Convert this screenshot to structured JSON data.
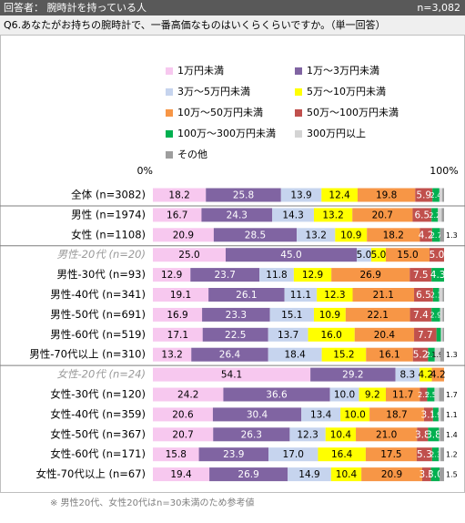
{
  "chart_data": {
    "type": "stacked_bar_100",
    "respondent": "回答者： 腕時計を持っている人",
    "sample_size": "n=3,082",
    "title": "Q6.あなたがお持ちの腕時計で、一番高価なものはいくらくらいですか。（単一回答）",
    "note": "※ 男性20代、女性20代はn=30未満のため参考値",
    "xlim": [
      0,
      100
    ],
    "xticks": [
      {
        "value": 0,
        "label": "0%"
      },
      {
        "value": 100,
        "label": "100%"
      }
    ],
    "categories": [
      "全体 (n=3082)",
      "男性 (n=1974)",
      "女性 (n=1108)",
      "男性-20代 (n=20)",
      "男性-30代 (n=93)",
      "男性-40代 (n=341)",
      "男性-50代 (n=691)",
      "男性-60代 (n=519)",
      "男性-70代以上 (n=310)",
      "女性-20代 (n=24)",
      "女性-30代 (n=120)",
      "女性-40代 (n=359)",
      "女性-50代 (n=367)",
      "女性-60代 (n=171)",
      "女性-70代以上 (n=67)"
    ],
    "series": [
      {
        "name": "1万円未満",
        "color": "#f7c8ef",
        "values": [
          18.2,
          16.7,
          20.9,
          25.0,
          12.9,
          19.1,
          16.9,
          17.1,
          13.2,
          54.1,
          24.2,
          20.6,
          20.7,
          15.8,
          19.4
        ],
        "value_labels": [
          "18.2",
          "16.7",
          "20.9",
          "25.0",
          "12.9",
          "19.1",
          "16.9",
          "17.1",
          "13.2",
          "54.1",
          "24.2",
          "20.6",
          "20.7",
          "15.8",
          "19.4"
        ]
      },
      {
        "name": "1万～3万円未満",
        "color": "#8064a2",
        "values": [
          25.8,
          24.3,
          28.5,
          45.0,
          23.7,
          26.1,
          23.3,
          22.5,
          26.4,
          29.2,
          36.6,
          30.4,
          26.3,
          23.9,
          26.9
        ],
        "value_labels": [
          "25.8",
          "24.3",
          "28.5",
          "45.0",
          "23.7",
          "26.1",
          "23.3",
          "22.5",
          "26.4",
          "29.2",
          "36.6",
          "30.4",
          "26.3",
          "23.9",
          "26.9"
        ]
      },
      {
        "name": "3万～5万円未満",
        "color": "#c6d4ee",
        "values": [
          13.9,
          14.3,
          13.2,
          5.0,
          11.8,
          11.1,
          15.1,
          13.7,
          18.4,
          8.3,
          10.0,
          13.4,
          12.3,
          17.0,
          14.9
        ],
        "value_labels": [
          "13.9",
          "14.3",
          "13.2",
          "5.0",
          "11.8",
          "11.1",
          "15.1",
          "13.7",
          "18.4",
          "8.3",
          "10.0",
          "13.4",
          "12.3",
          "17.0",
          "14.9"
        ]
      },
      {
        "name": "5万～10万円未満",
        "color": "#ffff00",
        "values": [
          12.4,
          13.2,
          10.9,
          5.0,
          12.9,
          12.3,
          10.9,
          16.0,
          15.2,
          4.2,
          9.2,
          10.0,
          10.4,
          16.4,
          10.4
        ],
        "value_labels": [
          "12.4",
          "13.2",
          "10.9",
          "5.0",
          "12.9",
          "12.3",
          "10.9",
          "16.0",
          "15.2",
          "4.2",
          "9.2",
          "10.0",
          "10.4",
          "16.4",
          "10.4"
        ]
      },
      {
        "name": "10万～50万円未満",
        "color": "#f79646",
        "values": [
          19.8,
          20.7,
          18.2,
          15.0,
          26.9,
          21.1,
          22.1,
          20.4,
          16.1,
          4.2,
          11.7,
          18.7,
          21.0,
          17.5,
          20.9
        ],
        "value_labels": [
          "19.8",
          "20.7",
          "18.2",
          "15.0",
          "26.9",
          "21.1",
          "22.1",
          "20.4",
          "16.1",
          "4.2",
          "11.7",
          "18.7",
          "21.0",
          "17.5",
          "20.9"
        ]
      },
      {
        "name": "50万～100万円未満",
        "color": "#c0504d",
        "values": [
          5.9,
          6.5,
          4.2,
          5.0,
          7.5,
          6.5,
          7.4,
          7.7,
          5.2,
          0,
          2.5,
          3.1,
          3.8,
          5.3,
          3.0
        ],
        "value_labels": [
          "5.9",
          "6.5",
          "4.2",
          "5.0",
          "7.5",
          "6.5",
          "7.4",
          "7.7",
          "5.2",
          null,
          "2.5",
          "3.1",
          "3.8",
          "5.3",
          "3.0"
        ]
      },
      {
        "name": "100万～300万円未満",
        "color": "#00b050",
        "values": [
          2.4,
          2.2,
          2.7,
          0,
          4.3,
          2.1,
          2.9,
          1.5,
          2.3,
          0,
          2.5,
          1.9,
          3.8,
          2.3,
          3.0
        ],
        "value_labels": [
          "2.4",
          "2.2",
          "2.7",
          null,
          "4.3",
          "2.1",
          "2.9",
          null,
          "2.3",
          null,
          "2.5",
          "1.9",
          "3.8",
          "2.3",
          "3.0"
        ]
      },
      {
        "name": "300万円以上",
        "color": "#d4d4d4",
        "values": [
          1.0,
          1.3,
          0.1,
          0,
          0,
          1.2,
          0.9,
          0.6,
          1.9,
          0,
          1.6,
          0.8,
          0.3,
          0.6,
          0
        ],
        "value_labels": [
          null,
          null,
          null,
          null,
          null,
          null,
          null,
          null,
          "1.9",
          null,
          null,
          null,
          null,
          null,
          null
        ]
      },
      {
        "name": "その他",
        "color": "#9e9e9e",
        "values": [
          0.6,
          0.8,
          1.3,
          0,
          0,
          0.5,
          0.5,
          0.5,
          1.3,
          0,
          1.7,
          1.1,
          1.4,
          1.2,
          1.5
        ],
        "value_labels": [
          null,
          null,
          "1.3",
          null,
          null,
          null,
          null,
          null,
          "1.3",
          null,
          "1.7",
          "1.1",
          "1.4",
          "1.2",
          "1.5"
        ]
      }
    ]
  }
}
